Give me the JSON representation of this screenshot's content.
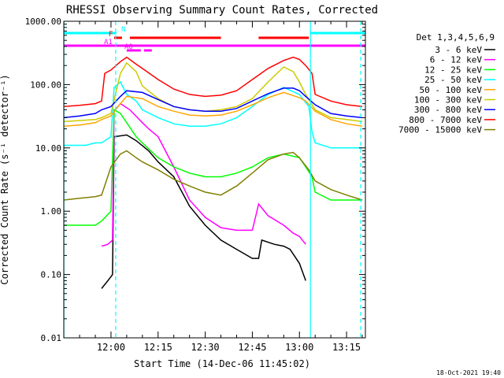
{
  "chart_data": {
    "type": "line",
    "title": "RHESSI Observing Summary Count Rates, Corrected",
    "xlabel": "Start Time (14-Dec-06 11:45:02)",
    "ylabel": "Corrected Count Rate (s⁻¹ detector⁻¹)",
    "yscale": "log",
    "ylim": [
      0.01,
      1000
    ],
    "xlim_minutes": [
      -15.03,
      81.0
    ],
    "ytick_values": [
      1000,
      100,
      10,
      1,
      0.1,
      0.01
    ],
    "ytick_labels": [
      "1000.00",
      "100.00",
      "10.00",
      "1.00",
      "0.10",
      "0.01"
    ],
    "xtick_values": [
      0,
      15,
      30,
      45,
      60,
      75
    ],
    "xtick_labels": [
      "12:00",
      "12:15",
      "12:30",
      "12:45",
      "13:00",
      "13:15"
    ],
    "timestamp": "18-Oct-2021 19:40",
    "legend_title": "Det 1,3,4,5,6,9",
    "legend_placement": "right",
    "series": [
      {
        "name": "3 - 6 keV",
        "color": "#000000",
        "x": [
          -3,
          -1,
          0.5,
          1,
          5,
          8,
          12,
          15,
          20,
          25,
          30,
          35,
          40,
          45,
          47,
          48,
          52,
          55,
          57,
          60,
          62
        ],
        "y": [
          0.06,
          0.08,
          0.1,
          15,
          16,
          13,
          9,
          6,
          3.5,
          1.2,
          0.6,
          0.35,
          0.25,
          0.18,
          0.18,
          0.35,
          0.3,
          0.28,
          0.25,
          0.15,
          0.08
        ]
      },
      {
        "name": "6 - 12 keV",
        "color": "#ff00ff",
        "x": [
          -3,
          -1,
          0.5,
          1,
          3,
          6,
          10,
          12,
          15,
          20,
          25,
          30,
          35,
          40,
          45,
          46,
          47,
          50,
          55,
          58,
          60,
          62
        ],
        "y": [
          0.28,
          0.3,
          0.35,
          38,
          50,
          40,
          25,
          20,
          15,
          5,
          1.5,
          0.8,
          0.55,
          0.5,
          0.5,
          0.8,
          1.3,
          0.85,
          0.6,
          0.45,
          0.4,
          0.3
        ]
      },
      {
        "name": "12 - 25 keV",
        "color": "#00ff00",
        "x": [
          -15,
          -10,
          -5,
          -3,
          0,
          1,
          3,
          5,
          8,
          10,
          15,
          20,
          25,
          30,
          35,
          40,
          45,
          50,
          55,
          60,
          62,
          64,
          65,
          70,
          75,
          80
        ],
        "y": [
          0.6,
          0.6,
          0.6,
          0.7,
          1,
          40,
          35,
          25,
          15,
          12,
          7,
          5,
          4,
          3.5,
          3.5,
          4,
          5,
          7,
          8,
          7,
          5,
          3.5,
          2,
          1.5,
          1.5,
          1.5
        ]
      },
      {
        "name": "25 - 50 keV",
        "color": "#00ffff",
        "x": [
          -15,
          -12,
          -8,
          -5,
          -3,
          0,
          1,
          3,
          5,
          8,
          10,
          15,
          20,
          25,
          30,
          35,
          40,
          45,
          50,
          55,
          60,
          63,
          64,
          65,
          70,
          75,
          80
        ],
        "y": [
          11,
          11,
          11,
          12,
          12,
          15,
          90,
          110,
          70,
          55,
          40,
          30,
          24,
          22,
          22,
          24,
          30,
          45,
          70,
          90,
          70,
          45,
          18,
          12,
          10,
          10,
          10
        ]
      },
      {
        "name": "50 - 100 keV",
        "color": "#ffa500",
        "x": [
          -15,
          -10,
          -5,
          -3,
          0,
          3,
          5,
          10,
          15,
          20,
          25,
          30,
          35,
          40,
          45,
          50,
          55,
          60,
          62,
          65,
          70,
          75,
          80
        ],
        "y": [
          22,
          23,
          25,
          28,
          32,
          50,
          65,
          60,
          45,
          38,
          33,
          32,
          33,
          38,
          48,
          62,
          75,
          62,
          55,
          38,
          28,
          24,
          22
        ]
      },
      {
        "name": "100 - 300 keV",
        "color": "#cccc00",
        "x": [
          -15,
          -10,
          -5,
          -3,
          0,
          3,
          5,
          8,
          10,
          15,
          20,
          25,
          30,
          35,
          40,
          45,
          50,
          55,
          58,
          60,
          62,
          65,
          70,
          75,
          80
        ],
        "y": [
          26,
          27,
          28,
          30,
          35,
          150,
          220,
          160,
          95,
          60,
          45,
          40,
          38,
          40,
          45,
          60,
          110,
          190,
          160,
          110,
          70,
          40,
          30,
          28,
          26
        ]
      },
      {
        "name": "300 - 800 keV",
        "color": "#0000ff",
        "x": [
          -15,
          -10,
          -5,
          -3,
          0,
          3,
          5,
          10,
          15,
          20,
          25,
          30,
          35,
          40,
          45,
          50,
          55,
          58,
          60,
          62,
          65,
          70,
          75,
          80
        ],
        "y": [
          30,
          32,
          35,
          40,
          45,
          65,
          80,
          75,
          58,
          45,
          40,
          38,
          38,
          42,
          55,
          72,
          88,
          88,
          80,
          65,
          48,
          35,
          32,
          30
        ]
      },
      {
        "name": "800 - 7000 keV",
        "color": "#ff0000",
        "x": [
          -15,
          -10,
          -5,
          -3,
          -2,
          0,
          3,
          5,
          8,
          10,
          15,
          20,
          25,
          30,
          35,
          40,
          45,
          50,
          55,
          58,
          60,
          62,
          64,
          65,
          70,
          75,
          80
        ],
        "y": [
          45,
          47,
          50,
          55,
          150,
          170,
          230,
          270,
          210,
          180,
          120,
          85,
          70,
          65,
          68,
          80,
          120,
          180,
          240,
          270,
          250,
          200,
          150,
          70,
          55,
          48,
          45
        ]
      },
      {
        "name": "7000 - 15000 keV",
        "color": "#808000",
        "x": [
          -15,
          -10,
          -5,
          -3,
          0,
          3,
          5,
          8,
          10,
          15,
          20,
          25,
          30,
          35,
          40,
          45,
          50,
          55,
          58,
          60,
          63,
          65,
          70,
          75,
          80
        ],
        "y": [
          1.5,
          1.6,
          1.7,
          1.8,
          5,
          8,
          9,
          7,
          6,
          4.5,
          3.2,
          2.5,
          2,
          1.8,
          2.5,
          4,
          6.5,
          8,
          8.5,
          7,
          4.5,
          3,
          2.2,
          1.8,
          1.5
        ]
      }
    ],
    "annotations": [
      {
        "label": "N",
        "color": "#00ffff",
        "segments": [
          [
            -15.03,
            1.7
          ],
          [
            63.5,
            81
          ]
        ]
      },
      {
        "label": "F",
        "color": "#ff0000",
        "segments": [
          [
            1,
            3.5
          ],
          [
            6,
            35
          ],
          [
            47,
            63
          ]
        ]
      },
      {
        "label": "A0",
        "color": "#ff00ff",
        "segments": [
          [
            5,
            9.5
          ],
          [
            10.5,
            13
          ]
        ]
      },
      {
        "label": "A1",
        "color": "#ff00ff",
        "segments": [
          [
            -15.03,
            81
          ]
        ]
      }
    ],
    "vertical_lines": [
      {
        "x": -15,
        "color": "#00ffff",
        "style": "solid"
      },
      {
        "x": 1.5,
        "color": "#00ffff",
        "style": "dashed"
      },
      {
        "x": 63.5,
        "color": "#00ffff",
        "style": "solid"
      },
      {
        "x": 79.5,
        "color": "#00ffff",
        "style": "dashed"
      }
    ]
  }
}
